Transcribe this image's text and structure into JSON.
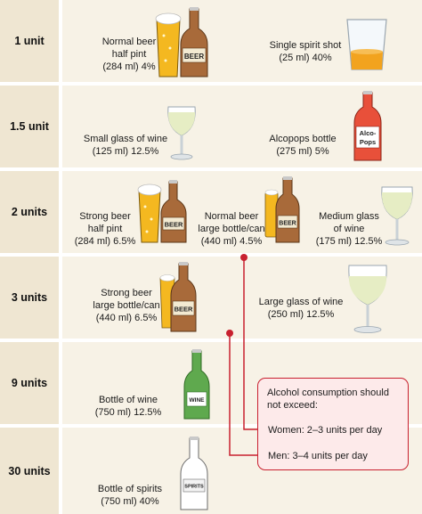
{
  "rows": [
    {
      "unit": "1 unit",
      "items": [
        {
          "name": "Normal beer",
          "lines": [
            "Normal beer",
            "half pint",
            "(284 ml) 4%"
          ]
        },
        {
          "name": "Single spirit shot",
          "lines": [
            "Single spirit shot",
            "(25 ml) 40%"
          ]
        }
      ]
    },
    {
      "unit": "1.5 unit",
      "items": [
        {
          "name": "Small glass of wine",
          "lines": [
            "Small glass of wine",
            "(125 ml) 12.5%"
          ]
        },
        {
          "name": "Alcopops bottle",
          "lines": [
            "Alcopops bottle",
            "(275 ml) 5%"
          ]
        }
      ]
    },
    {
      "unit": "2 units",
      "items": [
        {
          "name": "Strong beer half pint",
          "lines": [
            "Strong beer",
            "half pint",
            "(284 ml) 6.5%"
          ]
        },
        {
          "name": "Normal beer large bottle/can",
          "lines": [
            "Normal beer",
            "large bottle/can",
            "(440 ml) 4.5%"
          ]
        },
        {
          "name": "Medium glass of wine",
          "lines": [
            "Medium glass",
            "of wine",
            "(175 ml) 12.5%"
          ]
        }
      ]
    },
    {
      "unit": "3 units",
      "items": [
        {
          "name": "Strong beer large bottle/can",
          "lines": [
            "Strong beer",
            "large bottle/can",
            "(440 ml) 6.5%"
          ]
        },
        {
          "name": "Large glass of wine",
          "lines": [
            "Large glass of wine",
            "(250 ml) 12.5%"
          ]
        }
      ]
    },
    {
      "unit": "9 units",
      "items": [
        {
          "name": "Bottle of wine",
          "lines": [
            "Bottle of wine",
            "(750 ml) 12.5%"
          ]
        }
      ]
    },
    {
      "unit": "30 units",
      "items": [
        {
          "name": "Bottle of spirits",
          "lines": [
            "Bottle of spirits",
            "(750 ml) 40%"
          ]
        }
      ]
    }
  ],
  "bottle_labels": {
    "beer": "BEER",
    "alcopops_1": "Alco-",
    "alcopops_2": "Pops",
    "wine": "WINE",
    "spirits": "SPIRITS"
  },
  "callout": {
    "line1": "Alcohol consumption should",
    "line2": "not exceed:",
    "women": "Women: 2–3 units per day",
    "men": "Men: 3–4 units per day"
  },
  "colors": {
    "unit_bg": "#efe6d2",
    "content_bg": "#f7f2e6",
    "beer": "#f4b820",
    "bottle_brown": "#a86a3a",
    "wine_glass": "#e6edc4",
    "alcopops": "#e8503a",
    "wine_bottle": "#5fa94e",
    "callout_border": "#c8202f",
    "callout_bg": "#fdeaea",
    "connector": "#c8202f"
  }
}
